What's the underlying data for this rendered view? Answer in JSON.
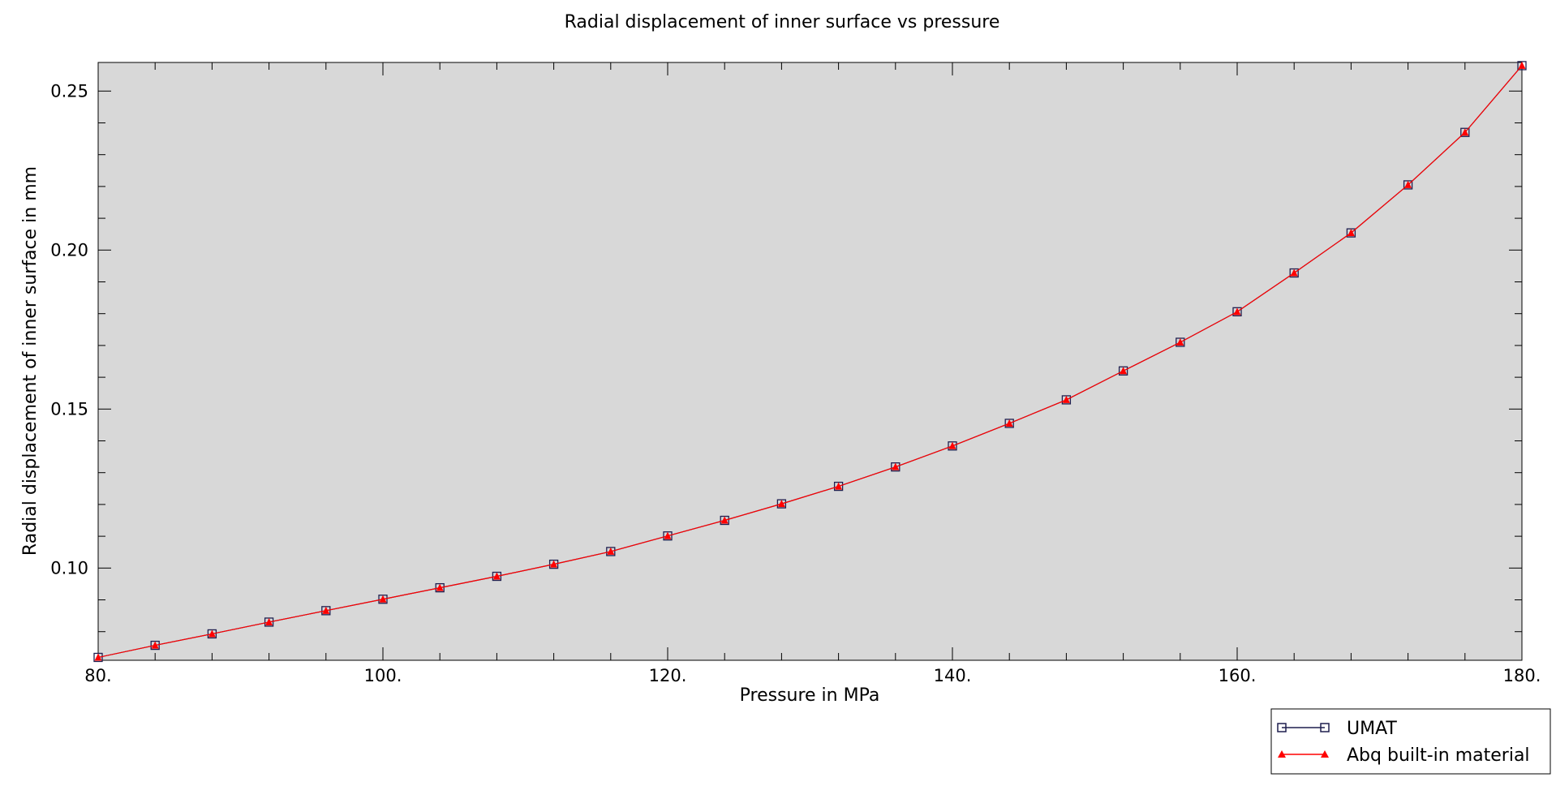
{
  "chart_data": {
    "type": "line",
    "title": "Radial displacement of inner surface vs pressure",
    "xlabel": "Pressure in MPa",
    "ylabel": "Radial displacement of inner surface in mm",
    "xlim": [
      80,
      180
    ],
    "ylim": [
      0.071,
      0.259
    ],
    "xticks": [
      80,
      100,
      120,
      140,
      160,
      180
    ],
    "xtick_labels": [
      "80.",
      "100.",
      "120.",
      "140.",
      "160.",
      "180."
    ],
    "yticks": [
      0.1,
      0.15,
      0.2,
      0.25
    ],
    "ytick_labels": [
      "0.10",
      "0.15",
      "0.20",
      "0.25"
    ],
    "grid": false,
    "legend_position": "bottom-right, outside plot",
    "plot_background": "#d8d8d8",
    "x": [
      80,
      84,
      88,
      92,
      96,
      100,
      104,
      108,
      112,
      116,
      120,
      124,
      128,
      132,
      136,
      140,
      144,
      148,
      152,
      156,
      160,
      164,
      168,
      172,
      176,
      180
    ],
    "series": [
      {
        "name": "UMAT",
        "color": "#1f1f4f",
        "marker": "square",
        "values": [
          0.0719,
          0.0757,
          0.0793,
          0.083,
          0.0866,
          0.0902,
          0.0938,
          0.0974,
          0.1012,
          0.1052,
          0.1101,
          0.115,
          0.1202,
          0.1257,
          0.1318,
          0.1384,
          0.1455,
          0.1529,
          0.162,
          0.171,
          0.1806,
          0.1928,
          0.2054,
          0.2205,
          0.237,
          0.258
        ]
      },
      {
        "name": "Abq built-in material",
        "color": "#ff0000",
        "marker": "triangle",
        "values": [
          0.0719,
          0.0757,
          0.0793,
          0.083,
          0.0866,
          0.0902,
          0.0938,
          0.0974,
          0.1012,
          0.1052,
          0.1101,
          0.115,
          0.1202,
          0.1257,
          0.1318,
          0.1384,
          0.1455,
          0.1529,
          0.162,
          0.171,
          0.1806,
          0.1928,
          0.2054,
          0.2205,
          0.237,
          0.258
        ]
      }
    ]
  }
}
